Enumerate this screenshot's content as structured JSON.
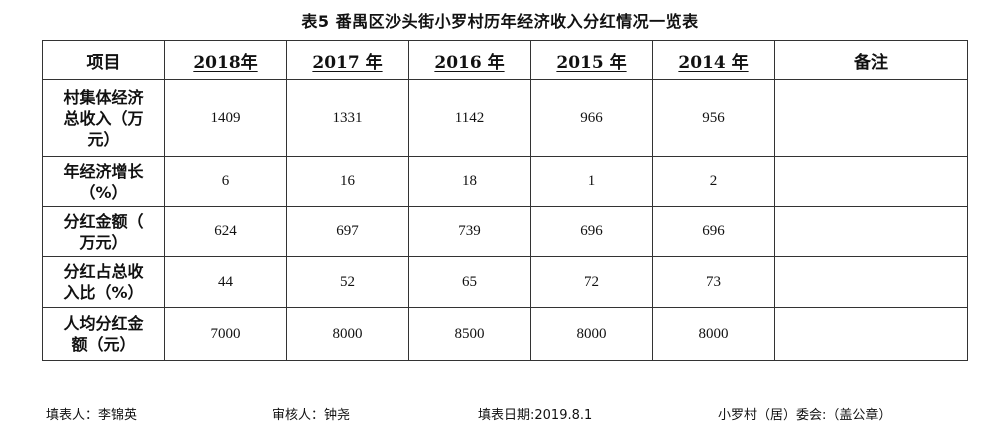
{
  "title": "表5 番禺区沙头街小罗村历年经济收入分红情况一览表",
  "table": {
    "header": {
      "item": "项目",
      "years": [
        "2018年",
        "2017 年",
        "2016 年",
        "2015 年",
        "2014 年"
      ],
      "note": "备注"
    },
    "rows": [
      {
        "label": [
          "村集体经济",
          "总收入（万",
          "元）"
        ],
        "values": [
          "1409",
          "1331",
          "1142",
          "966",
          "956"
        ],
        "note": ""
      },
      {
        "label": [
          "年经济增长",
          "（%）"
        ],
        "values": [
          "6",
          "16",
          "18",
          "1",
          "2"
        ],
        "note": ""
      },
      {
        "label": [
          "分红金额（",
          "万元）"
        ],
        "values": [
          "624",
          "697",
          "739",
          "696",
          "696"
        ],
        "note": ""
      },
      {
        "label": [
          "分红占总收",
          "入比（%）"
        ],
        "values": [
          "44",
          "52",
          "65",
          "72",
          "73"
        ],
        "note": ""
      },
      {
        "label": [
          "人均分红金",
          "额（元）"
        ],
        "values": [
          "7000",
          "8000",
          "8500",
          "8000",
          "8000"
        ],
        "note": ""
      }
    ]
  },
  "footer": {
    "filler": "填表人：李锦英",
    "reviewer": "审核人：钟尧",
    "date": "填表日期:2019.8.1",
    "committee": "小罗村（居）委会:（盖公章）"
  }
}
